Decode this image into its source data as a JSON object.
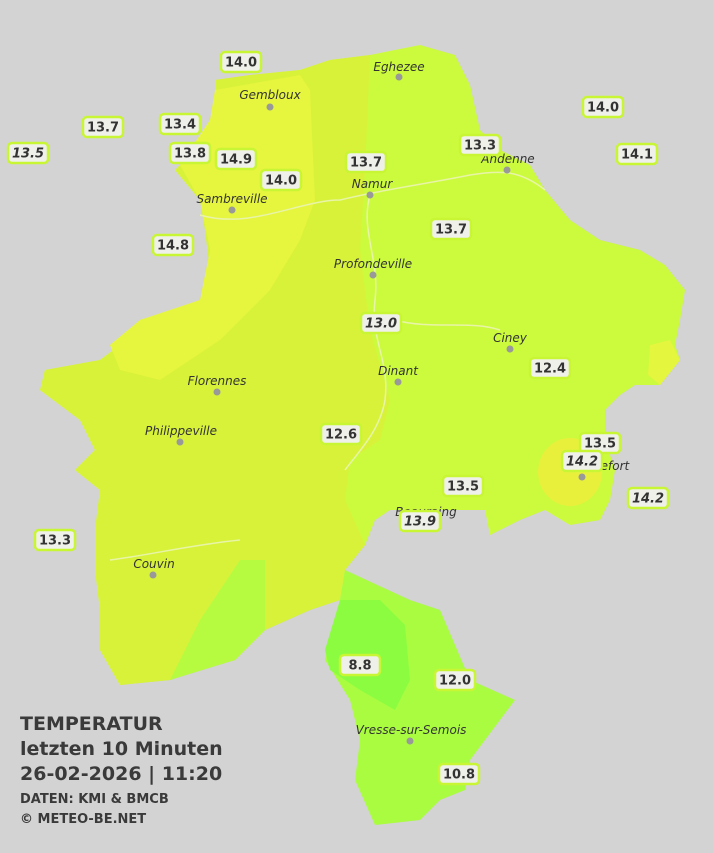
{
  "title": {
    "heading": "TEMPERATUR",
    "period": "letzten 10 Minuten",
    "datetime": "26-02-2026  |  11:20",
    "source": "DATEN: KMI & BMCB",
    "copyright": "© METEO-BE.NET"
  },
  "cities": [
    "Eghezee",
    "Gembloux",
    "Andenne",
    "Namur",
    "Sambreville",
    "Profondeville",
    "Ciney",
    "Dinant",
    "Florennes",
    "Philippeville",
    "Rochefort",
    "Beauraing",
    "Couvin",
    "Vresse-sur-Semois"
  ],
  "stations": [
    "14.0",
    "13.7",
    "13.4",
    "13.5",
    "13.8",
    "14.9",
    "14.0",
    "13.7",
    "13.3",
    "14.0",
    "14.1",
    "14.8",
    "13.7",
    "13.0",
    "12.4",
    "12.6",
    "13.5",
    "14.2",
    "14.2",
    "13.5",
    "13.9",
    "13.3",
    "8.8",
    "12.0",
    "10.8"
  ]
}
